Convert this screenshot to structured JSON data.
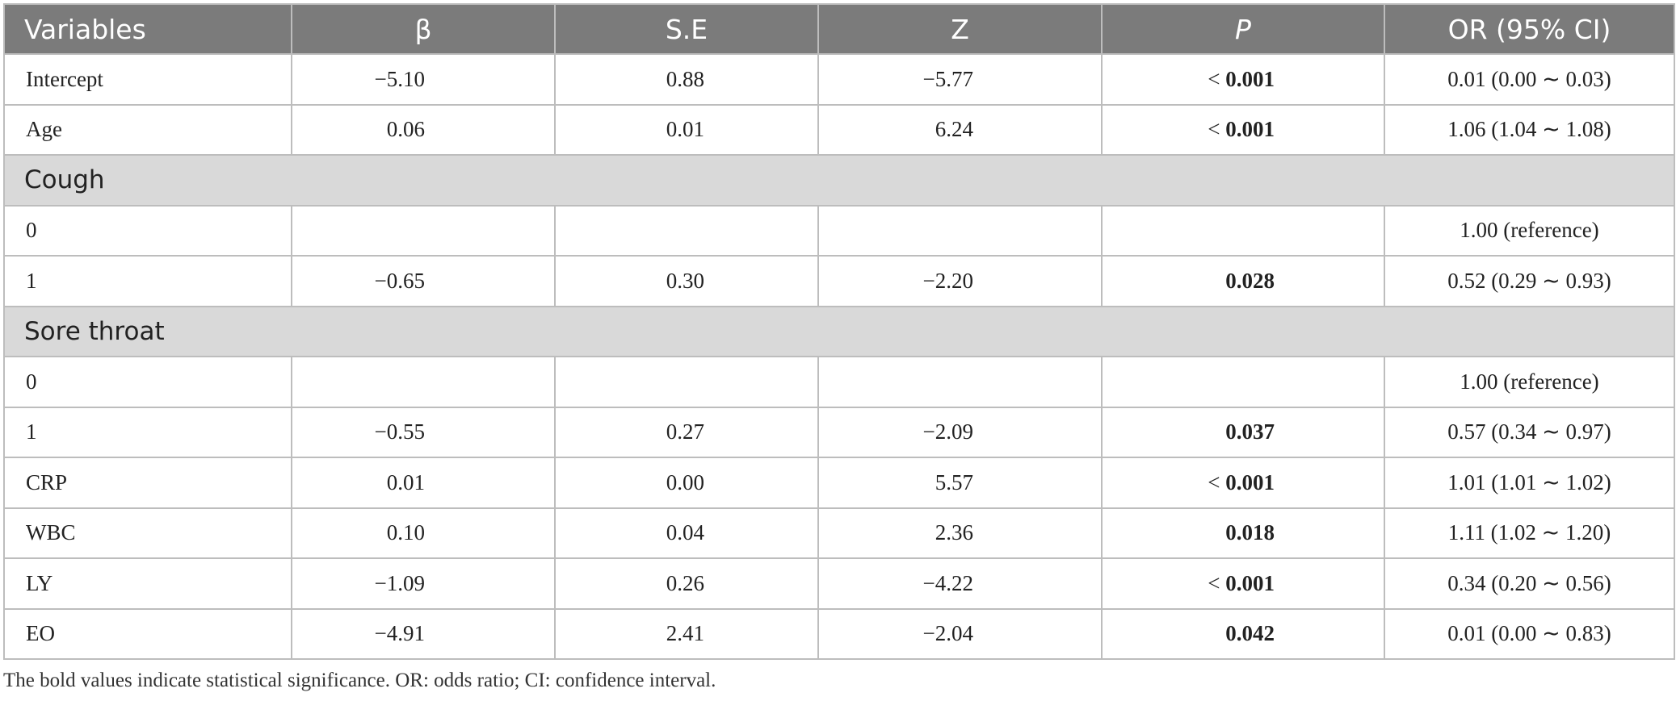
{
  "columns": [
    "Variables",
    "β",
    "S.E",
    "Z",
    "P",
    "OR (95% CI)"
  ],
  "rows": [
    {
      "type": "data",
      "variable": "Intercept",
      "beta": "−5.10",
      "se": "0.88",
      "z": "−5.77",
      "p_prefix": "< ",
      "p_bold": "0.001",
      "or": "0.01 (0.00 ∼ 0.03)"
    },
    {
      "type": "data",
      "variable": "Age",
      "beta": "0.06",
      "se": "0.01",
      "z": "6.24",
      "p_prefix": "< ",
      "p_bold": "0.001",
      "or": "1.06 (1.04 ∼ 1.08)"
    },
    {
      "type": "group",
      "label": "Cough"
    },
    {
      "type": "data",
      "variable": "0",
      "beta": "",
      "se": "",
      "z": "",
      "p_prefix": "",
      "p_bold": "",
      "or": "1.00 (reference)"
    },
    {
      "type": "data",
      "variable": "1",
      "beta": "−0.65",
      "se": "0.30",
      "z": "−2.20",
      "p_prefix": "",
      "p_bold": "0.028",
      "or": "0.52 (0.29 ∼ 0.93)"
    },
    {
      "type": "group",
      "label": "Sore throat"
    },
    {
      "type": "data",
      "variable": "0",
      "beta": "",
      "se": "",
      "z": "",
      "p_prefix": "",
      "p_bold": "",
      "or": "1.00 (reference)"
    },
    {
      "type": "data",
      "variable": "1",
      "beta": "−0.55",
      "se": "0.27",
      "z": "−2.09",
      "p_prefix": "",
      "p_bold": "0.037",
      "or": "0.57 (0.34 ∼ 0.97)"
    },
    {
      "type": "data",
      "variable": "CRP",
      "beta": "0.01",
      "se": "0.00",
      "z": "5.57",
      "p_prefix": "< ",
      "p_bold": "0.001",
      "or": "1.01 (1.01 ∼ 1.02)"
    },
    {
      "type": "data",
      "variable": "WBC",
      "beta": "0.10",
      "se": "0.04",
      "z": "2.36",
      "p_prefix": "",
      "p_bold": "0.018",
      "or": "1.11 (1.02 ∼ 1.20)"
    },
    {
      "type": "data",
      "variable": "LY",
      "beta": "−1.09",
      "se": "0.26",
      "z": "−4.22",
      "p_prefix": "< ",
      "p_bold": "0.001",
      "or": "0.34 (0.20 ∼ 0.56)"
    },
    {
      "type": "data",
      "variable": "EO",
      "beta": "−4.91",
      "se": "2.41",
      "z": "−2.04",
      "p_prefix": "",
      "p_bold": "0.042",
      "or": "0.01 (0.00 ∼ 0.83)"
    }
  ],
  "footnote": "The bold values indicate statistical significance. OR: odds ratio; CI: confidence interval."
}
